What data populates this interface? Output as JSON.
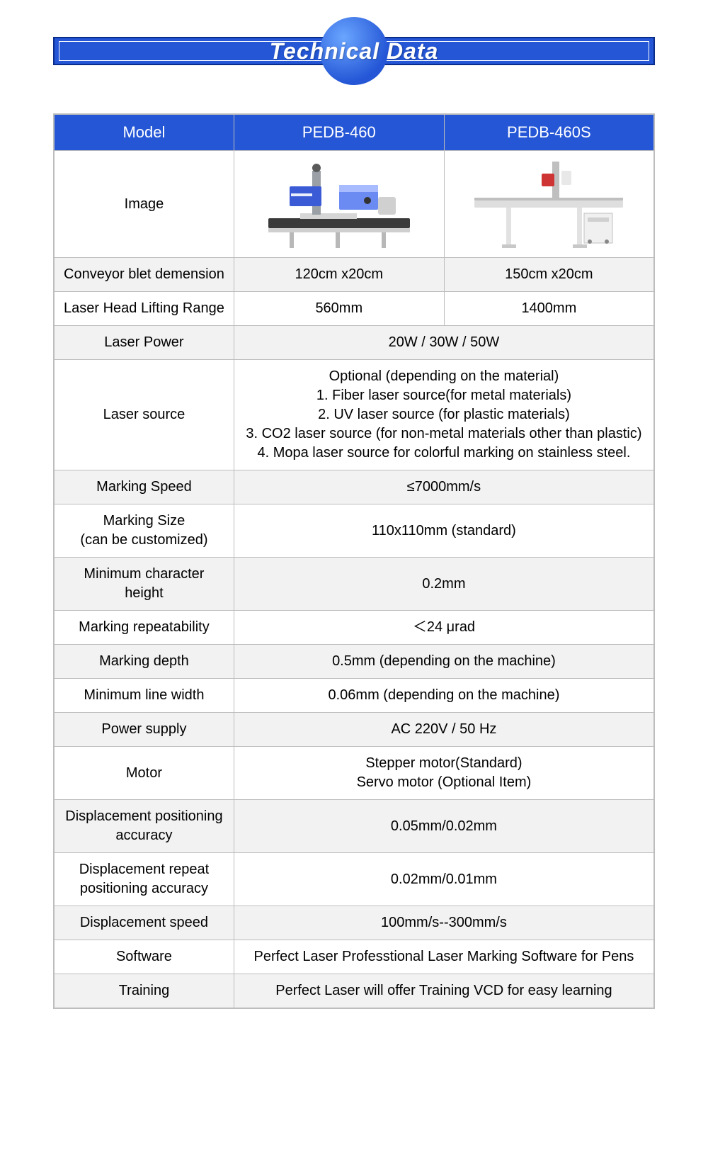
{
  "banner": {
    "title": "Technical Data"
  },
  "colors": {
    "header_bg": "#2456d6",
    "border": "#bdbdbd",
    "alt_row": "#f2f2f2",
    "text": "#000000",
    "header_text": "#ffffff"
  },
  "table": {
    "header": {
      "label": "Model",
      "col1": "PEDB-460",
      "col2": "PEDB-460S"
    },
    "rows": [
      {
        "label": "Image",
        "type": "image"
      },
      {
        "label": "Conveyor blet demension",
        "col1": "120cm x20cm",
        "col2": "150cm x20cm",
        "alt": true
      },
      {
        "label": "Laser Head Lifting Range",
        "col1": "560mm",
        "col2": "1400mm"
      },
      {
        "label": "Laser Power",
        "merged": "20W / 30W / 50W",
        "alt": true
      },
      {
        "label": "Laser source",
        "merged": "Optional (depending on the material)\n1. Fiber laser source(for metal materials)\n2. UV laser source (for plastic materials)\n3. CO2 laser source (for non-metal materials other than plastic)\n4. Mopa laser source for colorful marking on stainless steel."
      },
      {
        "label": "Marking Speed",
        "merged": "≤7000mm/s",
        "alt": true
      },
      {
        "label": "Marking Size\n(can be customized)",
        "merged": "110x110mm (standard)"
      },
      {
        "label": "Minimum character height",
        "merged": "0.2mm",
        "alt": true
      },
      {
        "label": "Marking repeatability",
        "merged": "＜24 μrad"
      },
      {
        "label": "Marking depth",
        "merged": "0.5mm (depending on the machine)",
        "alt": true
      },
      {
        "label": "Minimum line width",
        "merged": "0.06mm (depending on the machine)"
      },
      {
        "label": "Power supply",
        "merged": "AC 220V / 50 Hz",
        "alt": true
      },
      {
        "label": "Motor",
        "merged": "Stepper motor(Standard)\nServo motor (Optional Item)"
      },
      {
        "label": "Displacement positioning accuracy",
        "merged": "0.05mm/0.02mm",
        "alt": true
      },
      {
        "label": "Displacement repeat positioning accuracy",
        "merged": "0.02mm/0.01mm"
      },
      {
        "label": "Displacement speed",
        "merged": "100mm/s--300mm/s",
        "alt": true
      },
      {
        "label": "Software",
        "merged": "Perfect Laser Professtional Laser Marking Software for Pens"
      },
      {
        "label": "Training",
        "merged": "Perfect Laser will offer Training VCD for easy learning",
        "alt": true
      }
    ]
  }
}
